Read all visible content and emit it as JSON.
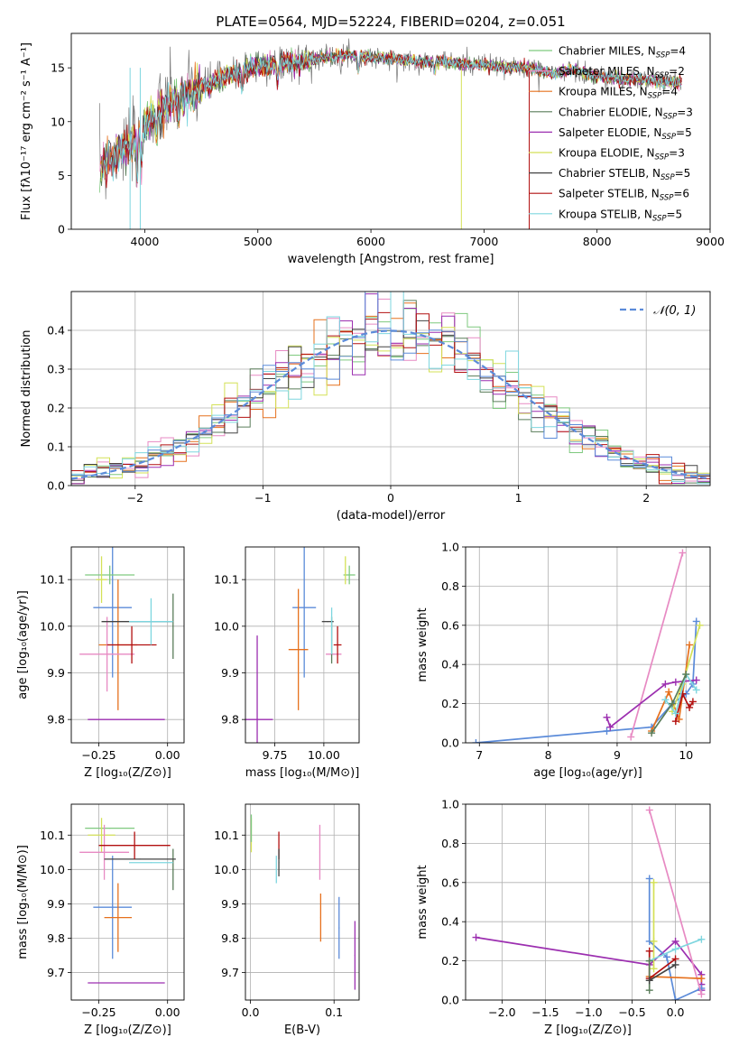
{
  "chart_data": [
    {
      "id": "spectrum",
      "type": "line",
      "title": "PLATE=0564, MJD=52224, FIBERID=0204, z=0.051",
      "xlabel": "wavelength [Angstrom, rest frame]",
      "ylabel": "Flux [fλ10⁻¹⁷ erg cm⁻² s⁻¹ A⁻¹]",
      "xlim": [
        3350,
        9000
      ],
      "ylim": [
        0,
        18.2
      ],
      "xticks": [
        4000,
        5000,
        6000,
        7000,
        8000,
        9000
      ],
      "yticks": [
        0,
        5,
        10,
        15
      ],
      "grid": false,
      "legend_position": "right",
      "data_color": "#777777",
      "continuum": [
        [
          3600,
          5.5
        ],
        [
          3700,
          6.5
        ],
        [
          3800,
          7.5
        ],
        [
          3900,
          7.8
        ],
        [
          4000,
          9.8
        ],
        [
          4200,
          11.5
        ],
        [
          4400,
          12.8
        ],
        [
          4600,
          13.6
        ],
        [
          4800,
          14.5
        ],
        [
          5000,
          15.2
        ],
        [
          5200,
          15.4
        ],
        [
          5400,
          15.6
        ],
        [
          5600,
          16.0
        ],
        [
          5800,
          16.2
        ],
        [
          6000,
          16.0
        ],
        [
          6200,
          15.8
        ],
        [
          6400,
          15.6
        ],
        [
          6600,
          15.6
        ],
        [
          6800,
          15.4
        ],
        [
          7000,
          15.3
        ],
        [
          7200,
          15.0
        ],
        [
          7400,
          15.0
        ],
        [
          7600,
          14.4
        ],
        [
          7800,
          14.8
        ],
        [
          8000,
          14.2
        ],
        [
          8200,
          14.0
        ],
        [
          8400,
          13.9
        ],
        [
          8600,
          13.7
        ],
        [
          8750,
          13.6
        ]
      ],
      "series": [
        {
          "name": "Chabrier MILES, N_SSP=4",
          "color": "#7fc97f"
        },
        {
          "name": "Salpeter MILES, N_SSP=2",
          "color": "#e78ac3"
        },
        {
          "name": "Kroupa MILES, N_SSP=4",
          "color": "#e6711e"
        },
        {
          "name": "Chabrier ELODIE, N_SSP=3",
          "color": "#5a7d5a"
        },
        {
          "name": "Salpeter ELODIE, N_SSP=5",
          "color": "#9c2fb0"
        },
        {
          "name": "Kroupa ELODIE, N_SSP=3",
          "color": "#d4e157"
        },
        {
          "name": "Chabrier STELIB, N_SSP=5",
          "color": "#444444"
        },
        {
          "name": "Salpeter STELIB, N_SSP=6",
          "color": "#b21010"
        },
        {
          "name": "Kroupa STELIB, N_SSP=5",
          "color": "#7ed6df"
        }
      ]
    },
    {
      "id": "residuals",
      "type": "line",
      "xlabel": "(data-model)/error",
      "ylabel": "Normed distribution",
      "xlim": [
        -2.5,
        2.5
      ],
      "ylim": [
        0,
        0.5
      ],
      "xticks": [
        -2,
        -1,
        0,
        1,
        2
      ],
      "yticks": [
        0.0,
        0.1,
        0.2,
        0.3,
        0.4
      ],
      "grid": true,
      "legend_position": "top-right",
      "normal_label": "𝒩(0, 1)",
      "normal_color": "#5b8bd9",
      "hist_bin_width": 0.1
    },
    {
      "id": "age-vs-Z",
      "type": "scatter",
      "xlabel": "Z [log₁₀(Z/Z⊙)]",
      "ylabel": "age  [log₁₀(age/yr)]",
      "xlim": [
        -0.35,
        0.06
      ],
      "ylim": [
        9.75,
        10.17
      ],
      "xticks": [
        -0.25,
        0.0
      ],
      "xtick_labels": [
        "−0.25",
        "0.00"
      ],
      "yticks": [
        9.8,
        9.9,
        10.0,
        10.1
      ],
      "grid": true,
      "points": [
        {
          "series": "Chabrier MILES",
          "x": -0.21,
          "y": 10.11,
          "xerr": 0.09,
          "yerr": 0.02
        },
        {
          "series": "Kroupa ELODIE",
          "x": -0.24,
          "y": 10.1,
          "xerr": 0.02,
          "yerr": 0.05
        },
        {
          "series": "Kroupa MILES",
          "x": -0.18,
          "y": 9.96,
          "xerr": 0.07,
          "yerr": 0.14
        },
        {
          "series": "Salpeter MILES",
          "x": -0.22,
          "y": 9.94,
          "xerr": 0.1,
          "yerr": 0.08
        },
        {
          "series": "Salpeter ELODIE",
          "x": -0.15,
          "y": 9.8,
          "xerr": 0.14,
          "yerr": 0.0
        },
        {
          "series": "Chabrier ELODIE",
          "x": 0.02,
          "y": 10.0,
          "xerr": 0.0,
          "yerr": 0.07
        },
        {
          "series": "Chabrier STELIB",
          "x": -0.11,
          "y": 10.01,
          "xerr": 0.13,
          "yerr": 0.0
        },
        {
          "series": "Salpeter STELIB",
          "x": -0.13,
          "y": 9.96,
          "xerr": 0.09,
          "yerr": 0.04
        },
        {
          "series": "Kroupa STELIB",
          "x": -0.06,
          "y": 10.01,
          "xerr": 0.08,
          "yerr": 0.05
        }
      ],
      "blue_point": {
        "x": -0.2,
        "y": 10.04,
        "xerr": 0.07,
        "yerr": 0.15,
        "color": "#5b8bd9"
      }
    },
    {
      "id": "age-vs-mass",
      "type": "scatter",
      "xlabel": "mass [log₁₀(M/M⊙)]",
      "xlim": [
        9.6,
        10.18
      ],
      "ylim": [
        9.75,
        10.17
      ],
      "xticks": [
        9.75,
        10.0
      ],
      "xtick_labels": [
        "9.75",
        "10.00"
      ],
      "yticks": [
        9.8,
        9.9,
        10.0,
        10.1
      ],
      "grid": true,
      "points": [
        {
          "series": "Chabrier MILES",
          "x": 10.13,
          "y": 10.11,
          "xerr": 0.03,
          "yerr": 0.02
        },
        {
          "series": "Kroupa ELODIE",
          "x": 10.11,
          "y": 10.12,
          "xerr": 0.0,
          "yerr": 0.03
        },
        {
          "series": "Kroupa MILES",
          "x": 9.87,
          "y": 9.95,
          "xerr": 0.05,
          "yerr": 0.13
        },
        {
          "series": "Salpeter MILES",
          "x": 10.05,
          "y": 9.94,
          "xerr": 0.04,
          "yerr": 0.0
        },
        {
          "series": "Salpeter ELODIE",
          "x": 9.66,
          "y": 9.8,
          "xerr": 0.08,
          "yerr": 0.18
        },
        {
          "series": "Chabrier ELODIE",
          "x": 10.04,
          "y": 9.97,
          "xerr": 0.0,
          "yerr": 0.05
        },
        {
          "series": "Chabrier STELIB",
          "x": 10.02,
          "y": 10.01,
          "xerr": 0.03,
          "yerr": 0.0
        },
        {
          "series": "Salpeter STELIB",
          "x": 10.07,
          "y": 9.96,
          "xerr": 0.02,
          "yerr": 0.04
        },
        {
          "series": "Kroupa STELIB",
          "x": 10.04,
          "y": 9.99,
          "xerr": 0.0,
          "yerr": 0.05
        }
      ],
      "blue_point": {
        "x": 9.9,
        "y": 10.04,
        "xerr": 0.06,
        "yerr": 0.15,
        "color": "#5b8bd9"
      }
    },
    {
      "id": "weight-vs-age",
      "type": "line",
      "xlabel": "age  [log₁₀(age/yr)]",
      "ylabel": "mass weight",
      "xlim": [
        6.8,
        10.35
      ],
      "ylim": [
        0,
        1.0
      ],
      "xticks": [
        7,
        8,
        9,
        10
      ],
      "yticks": [
        0.0,
        0.2,
        0.4,
        0.6,
        0.8,
        1.0
      ],
      "grid": true,
      "series": [
        {
          "name": "blue",
          "color": "#5b8bd9",
          "x": [
            6.95,
            8.85,
            9.5,
            9.8,
            10.0,
            10.1,
            10.15
          ],
          "y": [
            0.0,
            0.06,
            0.08,
            0.2,
            0.25,
            0.3,
            0.62
          ]
        },
        {
          "name": "Salpeter MILES",
          "color": "#e78ac3",
          "x": [
            9.2,
            9.95
          ],
          "y": [
            0.03,
            0.97
          ]
        },
        {
          "name": "Salpeter ELODIE",
          "color": "#9c2fb0",
          "x": [
            8.85,
            8.9,
            9.7,
            9.85,
            10.15
          ],
          "y": [
            0.13,
            0.08,
            0.3,
            0.31,
            0.32
          ]
        },
        {
          "name": "Kroupa MILES",
          "color": "#e6711e",
          "x": [
            9.5,
            9.75,
            9.9,
            10.05
          ],
          "y": [
            0.06,
            0.26,
            0.12,
            0.5
          ]
        },
        {
          "name": "Kroupa ELODIE",
          "color": "#d4e157",
          "x": [
            9.8,
            9.95,
            10.2
          ],
          "y": [
            0.16,
            0.3,
            0.6
          ]
        },
        {
          "name": "Salpeter STELIB",
          "color": "#b21010",
          "x": [
            9.85,
            9.95,
            10.05,
            10.1
          ],
          "y": [
            0.11,
            0.25,
            0.18,
            0.21
          ]
        },
        {
          "name": "Kroupa STELIB",
          "color": "#7ed6df",
          "x": [
            9.7,
            9.85,
            10.0,
            10.15
          ],
          "y": [
            0.22,
            0.15,
            0.35,
            0.27
          ]
        },
        {
          "name": "Chabrier ELODIE",
          "color": "#5a7d5a",
          "x": [
            9.5,
            9.8,
            10.0
          ],
          "y": [
            0.05,
            0.2,
            0.35
          ]
        }
      ]
    },
    {
      "id": "mass-vs-Z",
      "type": "scatter",
      "xlabel": "Z [log₁₀(Z/Z⊙)]",
      "ylabel": "mass [log₁₀(M/M⊙)]",
      "xlim": [
        -0.35,
        0.06
      ],
      "ylim": [
        9.62,
        10.19
      ],
      "xticks": [
        -0.25,
        0.0
      ],
      "xtick_labels": [
        "−0.25",
        "0.00"
      ],
      "yticks": [
        9.7,
        9.8,
        9.9,
        10.0,
        10.1
      ],
      "grid": true,
      "points": [
        {
          "series": "Chabrier MILES",
          "x": -0.21,
          "y": 10.12,
          "xerr": 0.09,
          "yerr": 0.0
        },
        {
          "series": "Kroupa ELODIE",
          "x": -0.24,
          "y": 10.1,
          "xerr": 0.05,
          "yerr": 0.05
        },
        {
          "series": "Salpeter MILES",
          "x": -0.23,
          "y": 10.05,
          "xerr": 0.09,
          "yerr": 0.08
        },
        {
          "series": "Kroupa MILES",
          "x": -0.18,
          "y": 9.86,
          "xerr": 0.05,
          "yerr": 0.1
        },
        {
          "series": "Salpeter ELODIE",
          "x": -0.15,
          "y": 9.67,
          "xerr": 0.14,
          "yerr": 0.0
        },
        {
          "series": "Chabrier ELODIE",
          "x": 0.02,
          "y": 10.0,
          "xerr": 0.0,
          "yerr": 0.06
        },
        {
          "series": "Chabrier STELIB",
          "x": -0.1,
          "y": 10.03,
          "xerr": 0.13,
          "yerr": 0.0
        },
        {
          "series": "Salpeter STELIB",
          "x": -0.12,
          "y": 10.07,
          "xerr": 0.13,
          "yerr": 0.04
        },
        {
          "series": "Kroupa STELIB",
          "x": -0.06,
          "y": 10.02,
          "xerr": 0.08,
          "yerr": 0.0
        }
      ],
      "blue_point": {
        "x": -0.2,
        "y": 9.89,
        "xerr": 0.07,
        "yerr": 0.15,
        "color": "#5b8bd9"
      }
    },
    {
      "id": "mass-vs-EBV",
      "type": "scatter",
      "xlabel": "E(B-V)",
      "xlim": [
        -0.006,
        0.13
      ],
      "ylim": [
        9.62,
        10.19
      ],
      "xticks": [
        0.0,
        0.1
      ],
      "xtick_labels": [
        "0.0",
        "0.1"
      ],
      "yticks": [
        9.7,
        9.8,
        9.9,
        10.0,
        10.1
      ],
      "grid": true,
      "points": [
        {
          "series": "Kroupa ELODIE",
          "x": 0.001,
          "y": 10.1,
          "xerr": 0.0,
          "yerr": 0.05
        },
        {
          "series": "Chabrier MILES",
          "x": 0.001,
          "y": 10.12,
          "xerr": 0.0,
          "yerr": 0.04
        },
        {
          "series": "Salpeter STELIB",
          "x": 0.034,
          "y": 10.07,
          "xerr": 0.0,
          "yerr": 0.04
        },
        {
          "series": "Chabrier STELIB",
          "x": 0.034,
          "y": 10.02,
          "xerr": 0.0,
          "yerr": 0.04
        },
        {
          "series": "Kroupa STELIB",
          "x": 0.031,
          "y": 10.0,
          "xerr": 0.0,
          "yerr": 0.04
        },
        {
          "series": "Salpeter MILES",
          "x": 0.083,
          "y": 10.05,
          "xerr": 0.0,
          "yerr": 0.08
        },
        {
          "series": "Kroupa MILES",
          "x": 0.084,
          "y": 9.86,
          "xerr": 0.0,
          "yerr": 0.07
        },
        {
          "series": "Salpeter ELODIE",
          "x": 0.125,
          "y": 9.75,
          "xerr": 0.0,
          "yerr": 0.1
        }
      ],
      "blue_point": {
        "x": 0.106,
        "y": 9.83,
        "xerr": 0.0,
        "yerr": 0.09,
        "color": "#5b8bd9"
      }
    },
    {
      "id": "weight-vs-Z",
      "type": "line",
      "xlabel": "Z [log₁₀(Z/Z⊙)]",
      "ylabel": "mass weight",
      "xlim": [
        -2.42,
        0.4
      ],
      "ylim": [
        0,
        1.0
      ],
      "xticks": [
        -2.0,
        -1.5,
        -1.0,
        -0.5,
        0.0
      ],
      "xtick_labels": [
        "−2.0",
        "−1.5",
        "−1.0",
        "−0.5",
        "0.0"
      ],
      "yticks": [
        0.0,
        0.2,
        0.4,
        0.6,
        0.8,
        1.0
      ],
      "grid": true,
      "series": [
        {
          "name": "Salpeter ELODIE",
          "color": "#9c2fb0",
          "x": [
            -2.3,
            -0.3,
            0.0,
            0.3,
            0.3,
            0.3
          ],
          "y": [
            0.32,
            0.18,
            0.3,
            0.13,
            0.08,
            0.05
          ]
        },
        {
          "name": "blue",
          "color": "#5b8bd9",
          "x": [
            -0.3,
            -0.3,
            -0.1,
            0.0,
            0.3
          ],
          "y": [
            0.62,
            0.3,
            0.22,
            0.0,
            0.06
          ]
        },
        {
          "name": "Salpeter MILES",
          "color": "#e78ac3",
          "x": [
            -0.3,
            0.3
          ],
          "y": [
            0.97,
            0.03
          ]
        },
        {
          "name": "Kroupa ELODIE",
          "color": "#d4e157",
          "x": [
            -0.25,
            -0.25,
            -0.25
          ],
          "y": [
            0.6,
            0.3,
            0.16
          ]
        },
        {
          "name": "Kroupa MILES",
          "color": "#e6711e",
          "x": [
            -0.3,
            0.3
          ],
          "y": [
            0.12,
            0.11
          ]
        },
        {
          "name": "Kroupa STELIB",
          "color": "#7ed6df",
          "x": [
            -0.3,
            0.0,
            0.3
          ],
          "y": [
            0.2,
            0.26,
            0.31
          ]
        },
        {
          "name": "Salpeter STELIB",
          "color": "#b21010",
          "x": [
            -0.3,
            -0.3,
            0.0
          ],
          "y": [
            0.25,
            0.11,
            0.21
          ]
        },
        {
          "name": "Chabrier ELODIE",
          "color": "#5a7d5a",
          "x": [
            -0.3,
            -0.3
          ],
          "y": [
            0.05,
            0.2
          ]
        },
        {
          "name": "Chabrier STELIB",
          "color": "#444444",
          "x": [
            -0.3,
            0.0
          ],
          "y": [
            0.1,
            0.18
          ]
        }
      ]
    }
  ]
}
